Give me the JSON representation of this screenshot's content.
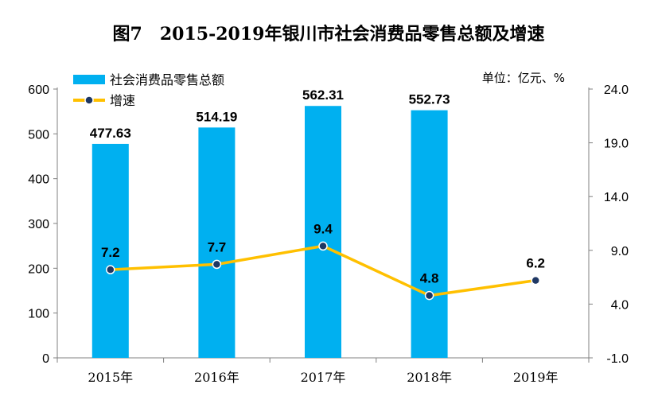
{
  "chart_data": {
    "type": "bar",
    "title": "图7　2015-2019年银川市社会消费品零售总额及增速",
    "unit_note": "单位：亿元、%",
    "categories": [
      "2015年",
      "2016年",
      "2017年",
      "2018年",
      "2019年"
    ],
    "series": [
      {
        "name": "社会消费品零售总额",
        "type": "bar",
        "axis": "left",
        "values": [
          477.63,
          514.19,
          562.31,
          552.73,
          null
        ],
        "labels": [
          "477.63",
          "514.19",
          "562.31",
          "552.73",
          ""
        ]
      },
      {
        "name": "增速",
        "type": "line",
        "axis": "right",
        "values": [
          7.2,
          7.7,
          9.4,
          4.8,
          6.2
        ],
        "labels": [
          "7.2",
          "7.7",
          "9.4",
          "4.8",
          "6.2"
        ]
      }
    ],
    "y_left": {
      "min": 0,
      "max": 600,
      "ticks": [
        "0",
        "100",
        "200",
        "300",
        "400",
        "500",
        "600"
      ]
    },
    "y_right": {
      "min": -1,
      "max": 24,
      "ticks": [
        "-1.0",
        "4.0",
        "9.0",
        "14.0",
        "19.0",
        "24.0"
      ]
    },
    "grid": false,
    "legend": "top-left",
    "colors": {
      "bar": "#00B0F0",
      "line": "#FFC000",
      "marker": "#1F3864",
      "axis": "#808080"
    }
  }
}
